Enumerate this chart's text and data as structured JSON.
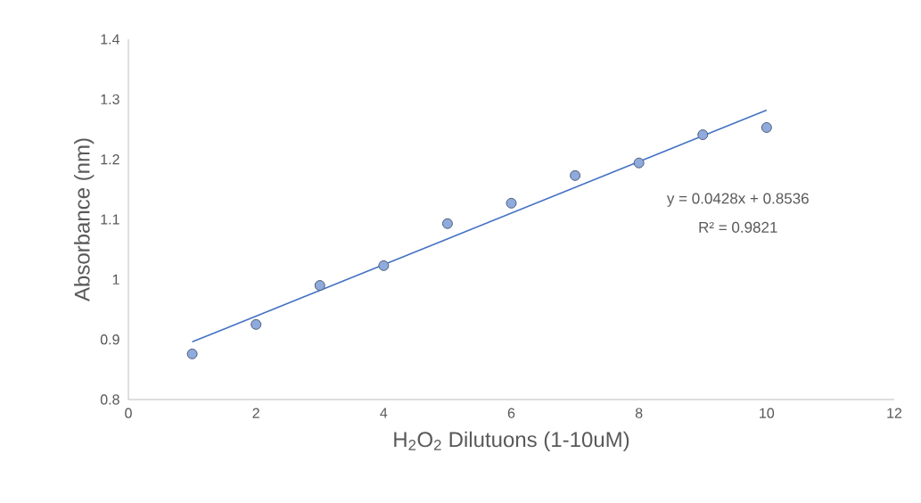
{
  "chart_data": {
    "type": "scatter",
    "xlabel": "H$_{2}$O$_{2}$ Dilutuons (1-10uM)",
    "ylabel": "Absorbance (nm)",
    "x": [
      1,
      2,
      3,
      4,
      5,
      6,
      7,
      8,
      9,
      10
    ],
    "series": [
      {
        "color": "#8faadc",
        "values": [
          0.876,
          0.925,
          0.99,
          1.023,
          1.093,
          1.127,
          1.173,
          1.194,
          1.241,
          1.253
        ]
      },
      {
        "type": "line",
        "color": "#4472c4",
        "x": [
          1,
          10
        ],
        "values": [
          0.896,
          1.282
        ],
        "marker": "none"
      }
    ],
    "marker": "circle",
    "xlim": [
      0,
      12
    ],
    "xticks": [
      0,
      2,
      4,
      6,
      8,
      10,
      12
    ],
    "ylim": [
      0.8,
      1.4
    ],
    "yticks": [
      0.8,
      0.9,
      1,
      1.1,
      1.2,
      1.3,
      1.4
    ],
    "annotations": [
      "y = 0.0428x + 0.8536",
      "R² = 0.9821"
    ]
  }
}
